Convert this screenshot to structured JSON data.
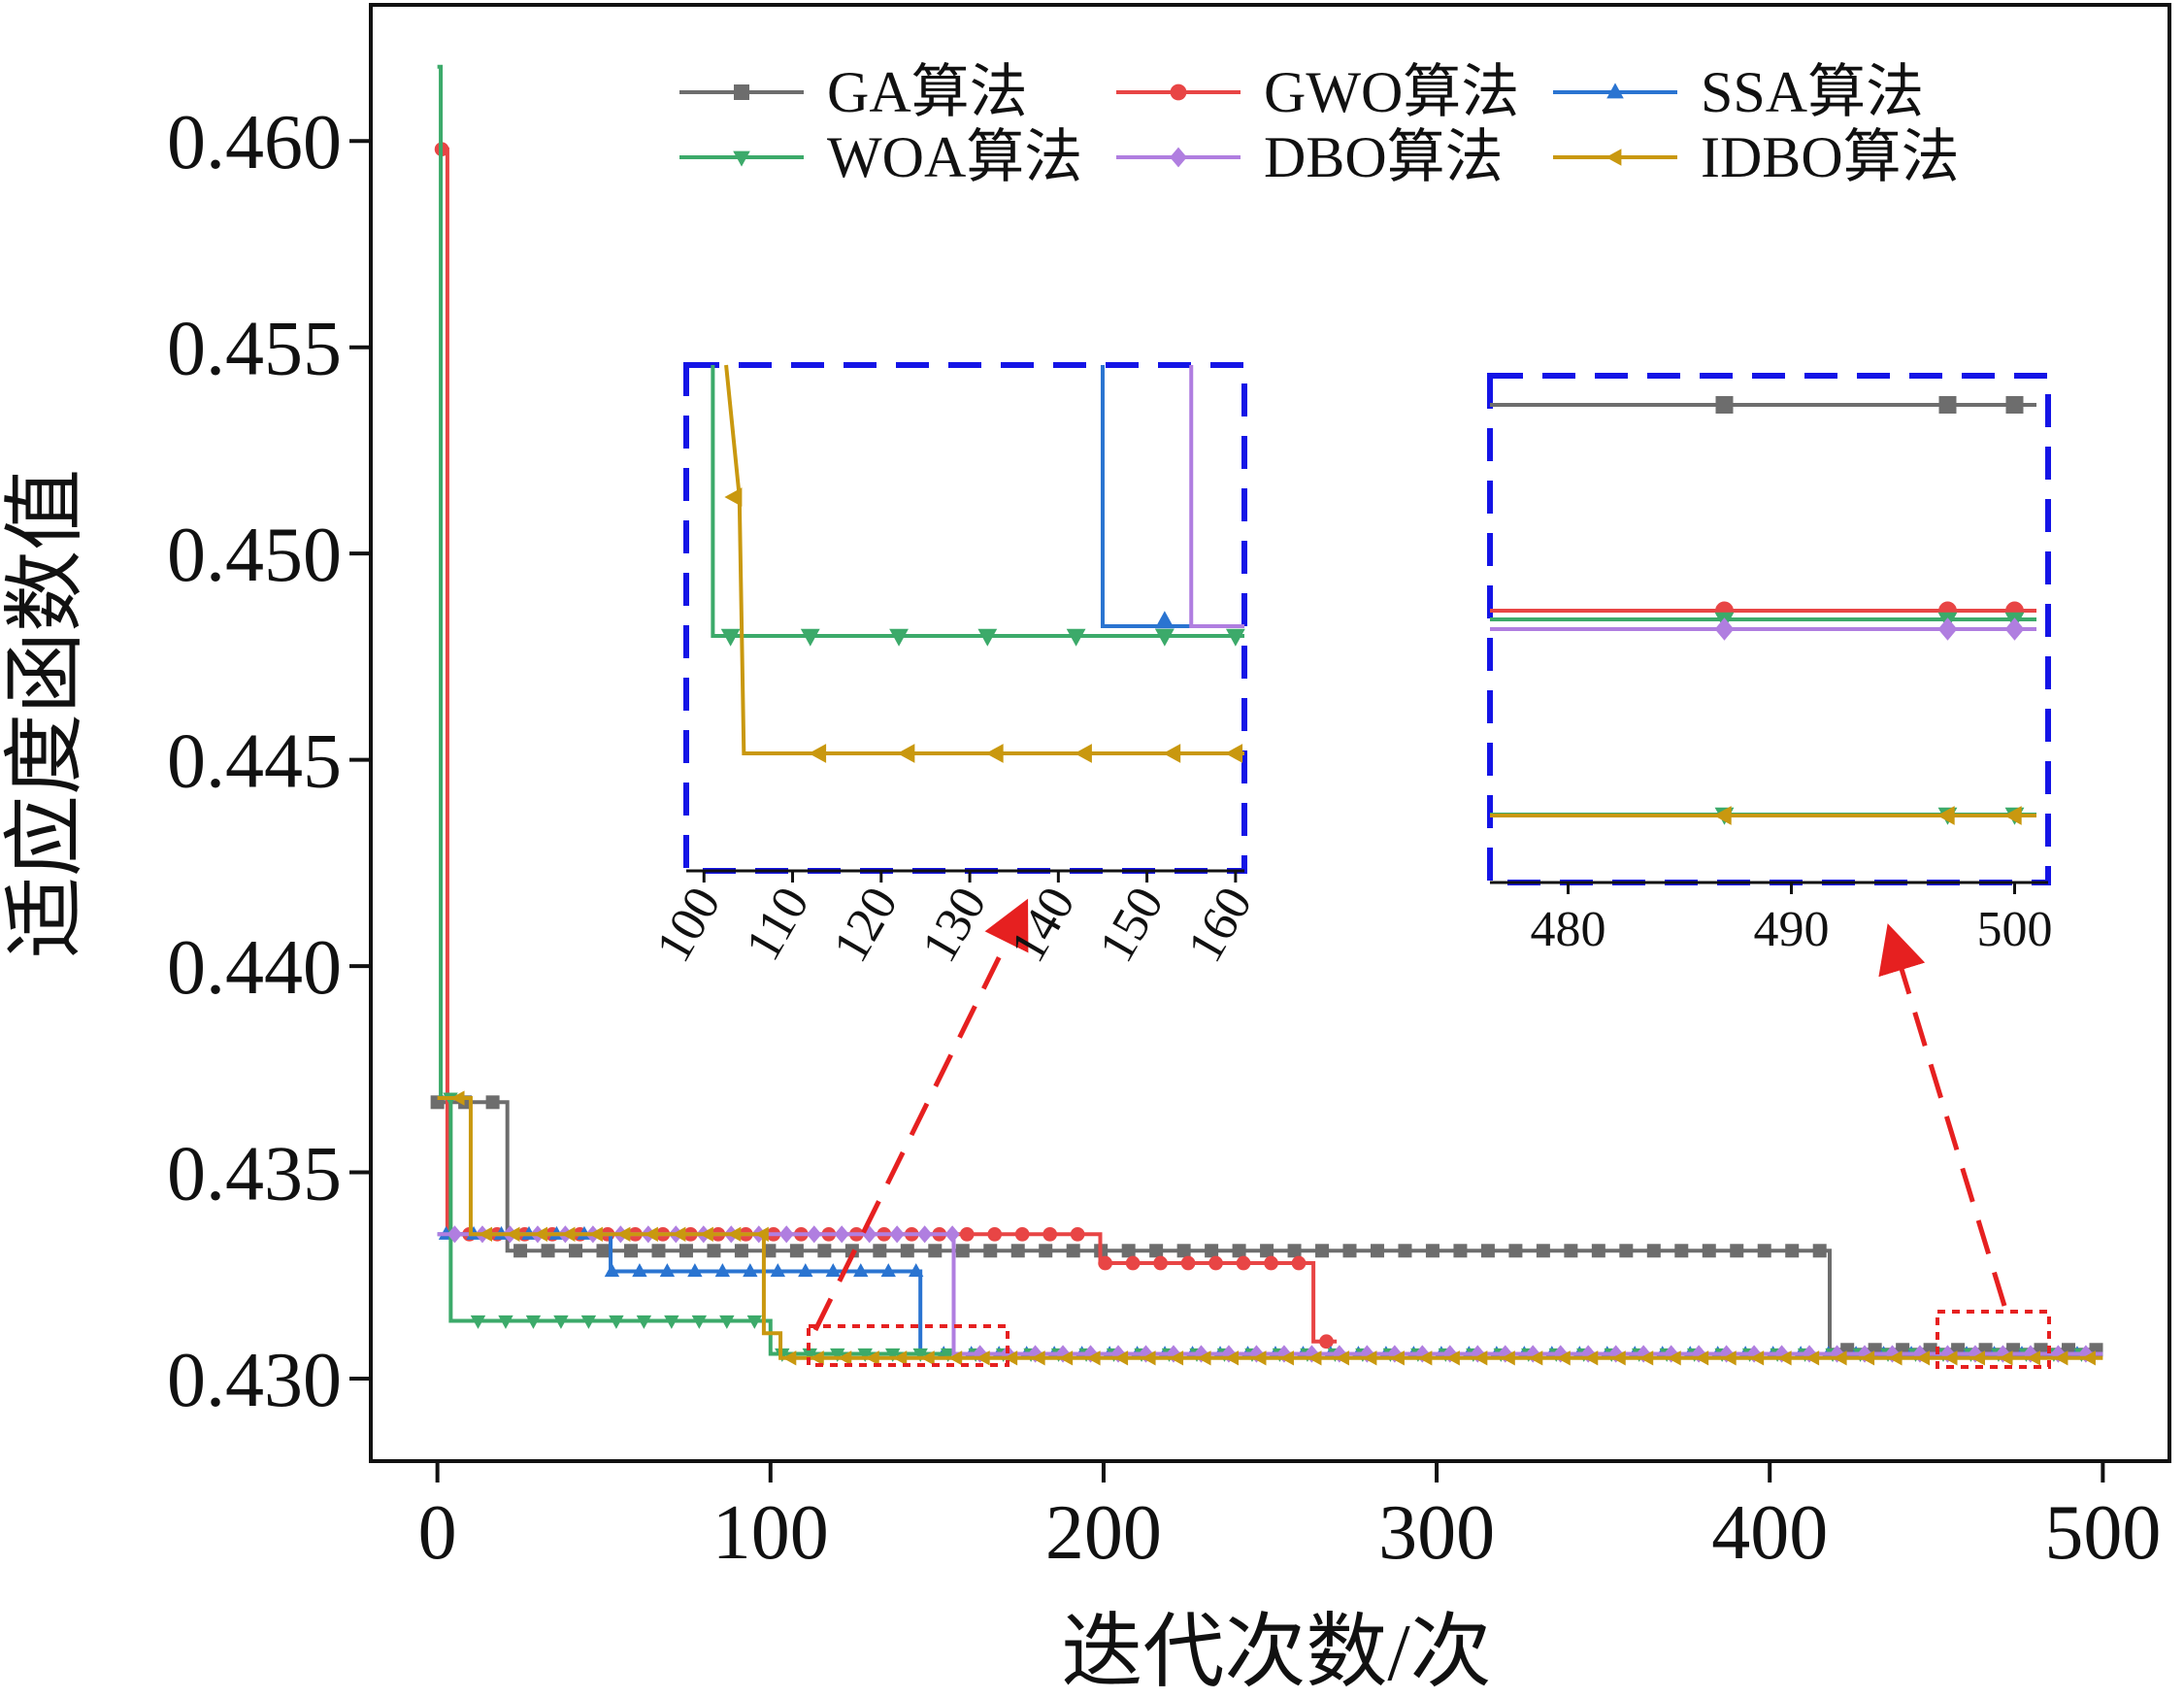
{
  "chart_data": {
    "type": "line",
    "title": "",
    "xlabel": "迭代次数/次",
    "ylabel": "适应度函数值",
    "xlim": [
      -20,
      520
    ],
    "ylim": [
      0.428,
      0.4633
    ],
    "x_ticks": [
      "0",
      "100",
      "200",
      "300",
      "400",
      "500"
    ],
    "y_ticks": [
      "0.430",
      "0.435",
      "0.440",
      "0.445",
      "0.450",
      "0.455",
      "0.460"
    ],
    "legend_position": "top",
    "series": [
      {
        "name": "GA算法",
        "color": "#6d6d6d",
        "marker": "square",
        "x": [
          0,
          21,
          21,
          418,
          418,
          500
        ],
        "y": [
          0.4367,
          0.4367,
          0.4331,
          0.4331,
          0.4307,
          0.4307
        ]
      },
      {
        "name": "GWO算法",
        "color": "#e84545",
        "marker": "circle",
        "x": [
          0,
          3,
          3,
          199,
          199,
          263,
          263,
          270
        ],
        "y": [
          0.4598,
          0.4598,
          0.4335,
          0.4335,
          0.4328,
          0.4328,
          0.4309,
          0.4309
        ]
      },
      {
        "name": "SSA算法",
        "color": "#2a74d1",
        "marker": "triangle-up",
        "x": [
          0,
          52,
          52,
          145,
          145,
          500
        ],
        "y": [
          0.4335,
          0.4335,
          0.4326,
          0.4326,
          0.4306,
          0.4306
        ]
      },
      {
        "name": "WOA算法",
        "color": "#3caa6a",
        "marker": "triangle-down",
        "x": [
          0,
          1,
          1,
          4,
          4,
          100,
          100,
          500
        ],
        "y": [
          0.4618,
          0.4618,
          0.4368,
          0.4368,
          0.4314,
          0.4314,
          0.4306,
          0.4306
        ]
      },
      {
        "name": "DBO算法",
        "color": "#b07ee0",
        "marker": "diamond",
        "x": [
          0,
          155,
          155,
          500
        ],
        "y": [
          0.4335,
          0.4335,
          0.4306,
          0.4306
        ]
      },
      {
        "name": "IDBO算法",
        "color": "#c9980f",
        "marker": "triangle-left",
        "x": [
          0,
          10,
          10,
          98,
          98,
          103,
          103,
          500
        ],
        "y": [
          0.4368,
          0.4368,
          0.4335,
          0.4335,
          0.4311,
          0.4311,
          0.4305,
          0.4305
        ]
      }
    ],
    "insets": [
      {
        "x_range": "100-160",
        "x_ticks": [
          "100",
          "110",
          "120",
          "130",
          "140",
          "150",
          "160"
        ]
      },
      {
        "x_range": "478-501",
        "x_ticks": [
          "480",
          "490",
          "500"
        ]
      }
    ]
  }
}
